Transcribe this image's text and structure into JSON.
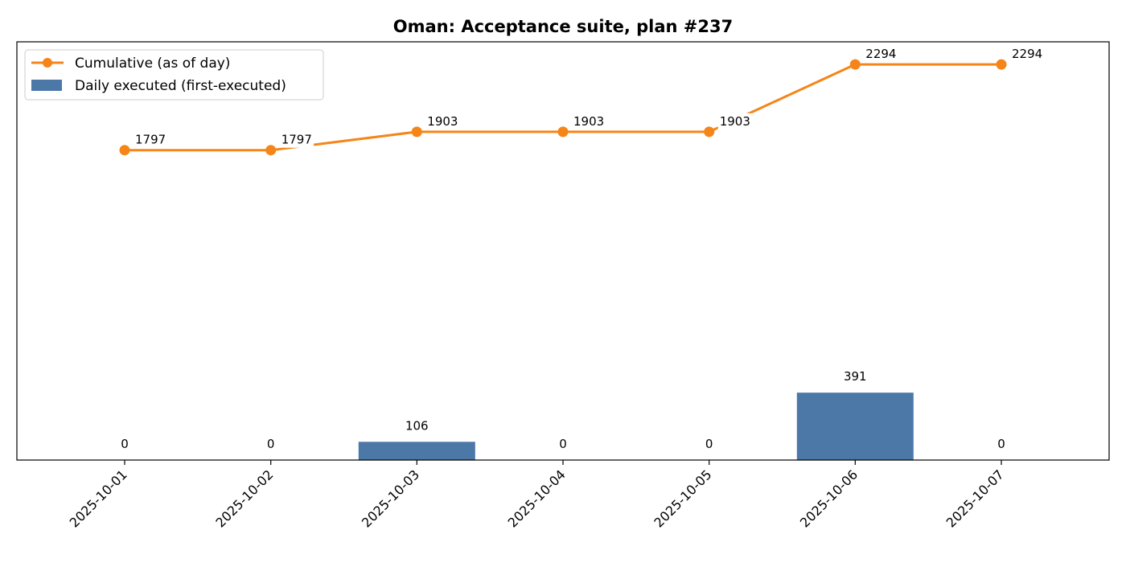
{
  "chart_data": {
    "type": "bar",
    "title": "Oman: Acceptance suite, plan #237",
    "xlabel": "",
    "ylabel": "",
    "categories": [
      "2025-10-01",
      "2025-10-02",
      "2025-10-03",
      "2025-10-04",
      "2025-10-05",
      "2025-10-06",
      "2025-10-07"
    ],
    "series": [
      {
        "name": "Daily executed (first-executed)",
        "kind": "bar",
        "color": "#4c78a8",
        "values": [
          0,
          0,
          106,
          0,
          0,
          391,
          0
        ]
      },
      {
        "name": "Cumulative (as of day)",
        "kind": "line",
        "marker": "circle",
        "color": "#f58518",
        "values": [
          1797,
          1797,
          1903,
          1903,
          1903,
          2294,
          2294
        ]
      }
    ],
    "y_axis_visible": false,
    "grid": false,
    "legend_position": "top-left",
    "data_labels": true
  }
}
